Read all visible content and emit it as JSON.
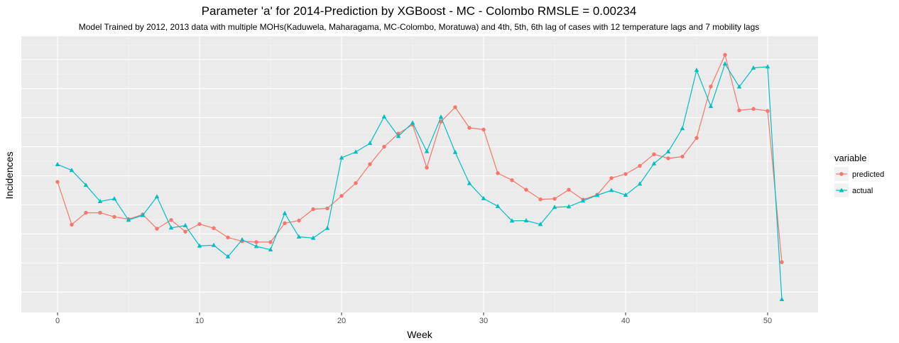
{
  "chart_data": {
    "type": "line",
    "title": "Parameter 'a' for 2014-Prediction by XGBoost -  MC - Colombo  RMSLE =  0.00234",
    "subtitle": "Model Trained by 2012, 2013 data with multiple MOHs(Kaduwela, Maharagama, MC-Colombo, Moratuwa) and 4th, 5th, 6th lag of cases with 12 temperature lags and 7 mobility lags",
    "xlabel": "Week",
    "ylabel": "Incidences",
    "x_ticks": [
      0,
      10,
      20,
      30,
      40,
      50
    ],
    "xlim": [
      -2.55,
      53.55
    ],
    "ylim": [
      -0.07,
      0.88
    ],
    "y_tick_labels_shown": false,
    "grid": true,
    "legend": {
      "title": "variable",
      "position": "right"
    },
    "x": [
      0,
      1,
      2,
      3,
      4,
      5,
      6,
      7,
      8,
      9,
      10,
      11,
      12,
      13,
      14,
      15,
      16,
      17,
      18,
      19,
      20,
      21,
      22,
      23,
      24,
      25,
      26,
      27,
      28,
      29,
      30,
      31,
      32,
      33,
      34,
      35,
      36,
      37,
      38,
      39,
      40,
      41,
      42,
      43,
      44,
      45,
      46,
      47,
      48,
      49,
      50,
      51
    ],
    "series": [
      {
        "name": "predicted",
        "color": "#F8766D",
        "marker": "circle",
        "values": [
          0.379,
          0.232,
          0.273,
          0.273,
          0.259,
          0.251,
          0.267,
          0.218,
          0.248,
          0.208,
          0.234,
          0.22,
          0.188,
          0.175,
          0.172,
          0.172,
          0.237,
          0.246,
          0.285,
          0.288,
          0.331,
          0.375,
          0.44,
          0.5,
          0.545,
          0.576,
          0.428,
          0.586,
          0.636,
          0.565,
          0.559,
          0.409,
          0.385,
          0.352,
          0.319,
          0.321,
          0.352,
          0.318,
          0.335,
          0.392,
          0.406,
          0.434,
          0.474,
          0.46,
          0.466,
          0.53,
          0.707,
          0.816,
          0.625,
          0.63,
          0.623,
          0.103
        ]
      },
      {
        "name": "actual",
        "color": "#00BFC4",
        "marker": "triangle",
        "values": [
          0.439,
          0.419,
          0.368,
          0.312,
          0.321,
          0.248,
          0.264,
          0.328,
          0.221,
          0.229,
          0.159,
          0.161,
          0.122,
          0.18,
          0.157,
          0.146,
          0.271,
          0.19,
          0.186,
          0.22,
          0.462,
          0.482,
          0.512,
          0.603,
          0.536,
          0.582,
          0.484,
          0.602,
          0.481,
          0.374,
          0.322,
          0.295,
          0.245,
          0.246,
          0.233,
          0.292,
          0.294,
          0.314,
          0.333,
          0.35,
          0.334,
          0.372,
          0.442,
          0.483,
          0.563,
          0.763,
          0.639,
          0.785,
          0.706,
          0.771,
          0.775,
          -0.025
        ]
      }
    ]
  }
}
